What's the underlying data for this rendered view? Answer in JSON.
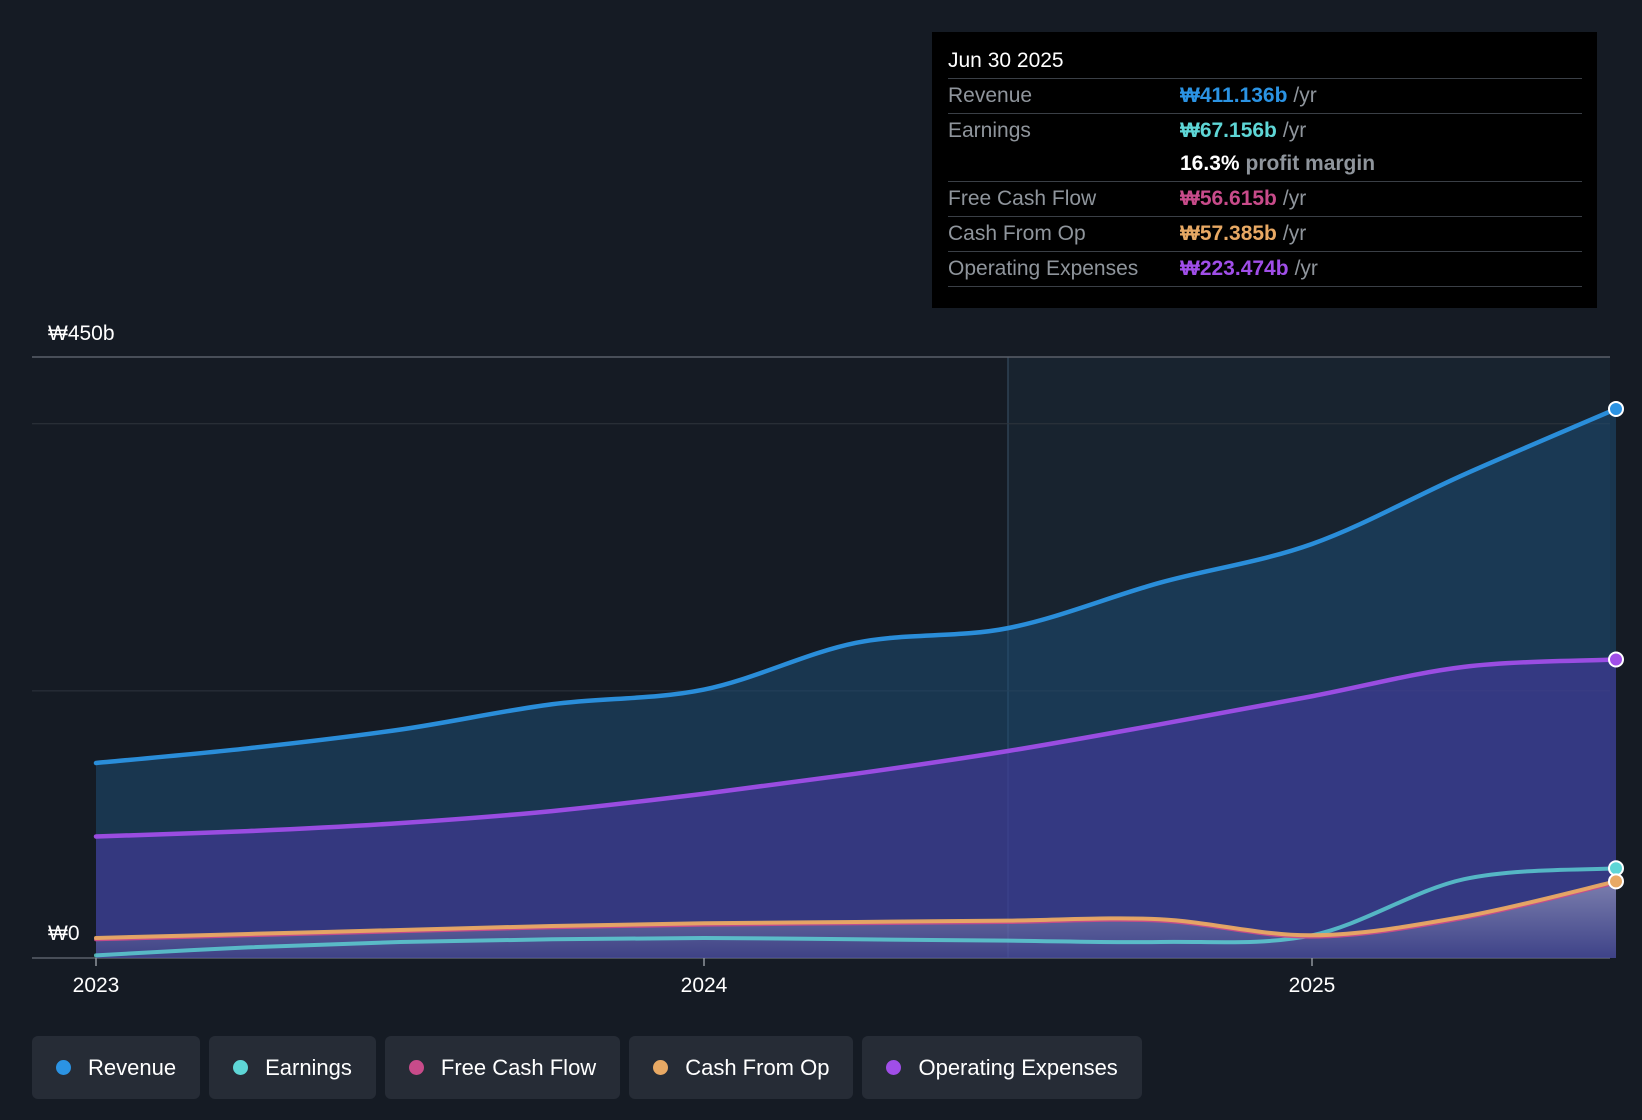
{
  "chart_data": {
    "type": "area",
    "title": "",
    "y_axis": {
      "top_label": "₩450b",
      "bottom_label": "₩0",
      "ylim": [
        0,
        450
      ]
    },
    "x_axis": {
      "ticks": [
        {
          "label": "2023",
          "x": 2023.0
        },
        {
          "label": "2024",
          "x": 2024.0
        },
        {
          "label": "2025",
          "x": 2025.0
        }
      ],
      "xlim": [
        2022.9,
        2025.5
      ]
    },
    "forecast_start": 2024.5,
    "series": [
      {
        "name": "Operating Expenses",
        "color": "#a04ee8",
        "fill": true,
        "points": [
          [
            2023.0,
            91
          ],
          [
            2023.25,
            95
          ],
          [
            2023.5,
            101
          ],
          [
            2023.75,
            110
          ],
          [
            2024.0,
            123
          ],
          [
            2024.25,
            138
          ],
          [
            2024.5,
            155
          ],
          [
            2024.75,
            175
          ],
          [
            2025.0,
            196
          ],
          [
            2025.25,
            218
          ],
          [
            2025.5,
            223.5
          ]
        ]
      },
      {
        "name": "Revenue",
        "color": "#2b93e3",
        "fill": true,
        "points": [
          [
            2023.0,
            146
          ],
          [
            2023.25,
            157
          ],
          [
            2023.5,
            171
          ],
          [
            2023.75,
            190
          ],
          [
            2024.0,
            201
          ],
          [
            2024.25,
            236
          ],
          [
            2024.5,
            247
          ],
          [
            2024.75,
            281
          ],
          [
            2025.0,
            310
          ],
          [
            2025.25,
            362
          ],
          [
            2025.5,
            411.1
          ]
        ]
      },
      {
        "name": "Cash From Op",
        "color": "#e8a964",
        "fill": true,
        "points": [
          [
            2023.0,
            15
          ],
          [
            2023.25,
            18
          ],
          [
            2023.5,
            21
          ],
          [
            2023.75,
            24
          ],
          [
            2024.0,
            26
          ],
          [
            2024.25,
            27
          ],
          [
            2024.5,
            28
          ],
          [
            2024.75,
            29
          ],
          [
            2025.0,
            17
          ],
          [
            2025.25,
            31
          ],
          [
            2025.5,
            57.4
          ]
        ]
      },
      {
        "name": "Free Cash Flow",
        "color": "#c84b8a",
        "fill": false,
        "points": [
          [
            2023.0,
            14
          ],
          [
            2023.25,
            17
          ],
          [
            2023.5,
            20
          ],
          [
            2023.75,
            23
          ],
          [
            2024.0,
            25
          ],
          [
            2024.25,
            26
          ],
          [
            2024.5,
            27
          ],
          [
            2024.75,
            28
          ],
          [
            2025.0,
            16
          ],
          [
            2025.25,
            30
          ],
          [
            2025.5,
            56.6
          ]
        ]
      },
      {
        "name": "Earnings",
        "color": "#5ed6d6",
        "fill": false,
        "points": [
          [
            2023.0,
            2
          ],
          [
            2023.25,
            8
          ],
          [
            2023.5,
            12
          ],
          [
            2023.75,
            14
          ],
          [
            2024.0,
            15
          ],
          [
            2024.25,
            14
          ],
          [
            2024.5,
            13
          ],
          [
            2024.75,
            12
          ],
          [
            2025.0,
            17
          ],
          [
            2025.25,
            59
          ],
          [
            2025.5,
            67.2
          ]
        ]
      }
    ]
  },
  "tooltip": {
    "date": "Jun 30 2025",
    "rows": [
      {
        "label": "Revenue",
        "value": "₩411.136b",
        "unit": "/yr",
        "color": "#2b93e3"
      },
      {
        "label": "Earnings",
        "value": "₩67.156b",
        "unit": "/yr",
        "color": "#5ed6d6"
      },
      {
        "label": "Free Cash Flow",
        "value": "₩56.615b",
        "unit": "/yr",
        "color": "#c84b8a"
      },
      {
        "label": "Cash From Op",
        "value": "₩57.385b",
        "unit": "/yr",
        "color": "#e8a964"
      },
      {
        "label": "Operating Expenses",
        "value": "₩223.474b",
        "unit": "/yr",
        "color": "#a04ee8"
      }
    ],
    "profit_margin_value": "16.3%",
    "profit_margin_label": "profit margin"
  },
  "legend": [
    {
      "label": "Revenue",
      "color": "#2b93e3"
    },
    {
      "label": "Earnings",
      "color": "#5ed6d6"
    },
    {
      "label": "Free Cash Flow",
      "color": "#c84b8a"
    },
    {
      "label": "Cash From Op",
      "color": "#e8a964"
    },
    {
      "label": "Operating Expenses",
      "color": "#a04ee8"
    }
  ]
}
